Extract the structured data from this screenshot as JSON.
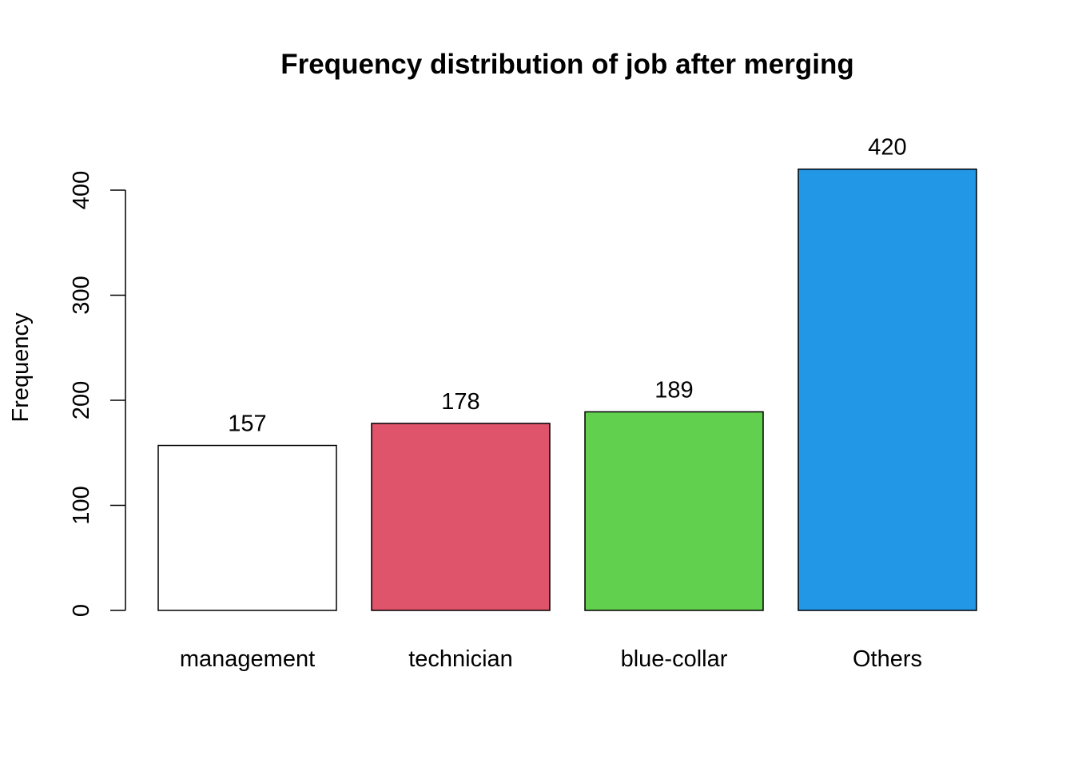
{
  "chart_data": {
    "type": "bar",
    "title": "Frequency distribution of job after merging",
    "xlabel": "",
    "ylabel": "Frequency",
    "categories": [
      "management",
      "technician",
      "blue-collar",
      "Others"
    ],
    "values": [
      157,
      178,
      189,
      420
    ],
    "data_labels": [
      "157",
      "178",
      "189",
      "420"
    ],
    "colors": [
      "#FFFFFF",
      "#DF536B",
      "#61D04F",
      "#2297E6"
    ],
    "yticks": [
      0,
      100,
      200,
      300,
      400
    ],
    "ytick_labels": [
      "0",
      "100",
      "200",
      "300",
      "400"
    ],
    "ylim": [
      0,
      420
    ],
    "grid": false,
    "legend": "none"
  }
}
